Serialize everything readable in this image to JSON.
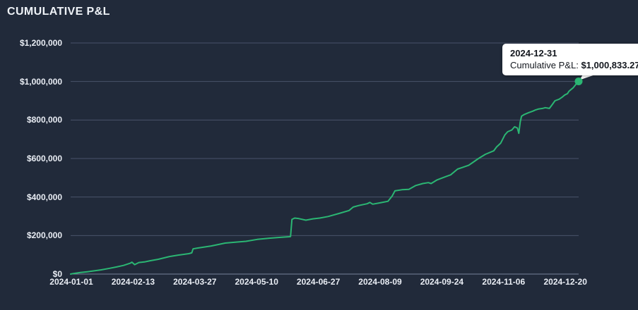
{
  "title": "CUMULATIVE P&L",
  "colors": {
    "background": "#212a3a",
    "line": "#2bb673",
    "marker": "#2bb673",
    "grid": "#49536a",
    "axis": "#76819a",
    "tick_text": "#e9edf4",
    "title_text": "#eef2f7",
    "tooltip_bg": "#ffffff",
    "tooltip_text": "#14181f"
  },
  "tooltip": {
    "date": "2024-12-31",
    "metric_label": "Cumulative P&L: ",
    "value": "$1,000,833.27"
  },
  "chart_data": {
    "type": "line",
    "title": "CUMULATIVE P&L",
    "series_name": "Cumulative P&L",
    "legend": "none",
    "grid": "horizontal-only",
    "ylim": [
      0,
      1200000
    ],
    "x_range": [
      "2024-01-01",
      "2024-12-31"
    ],
    "y_tick_values": [
      1200000,
      1000000,
      800000,
      600000,
      400000,
      200000,
      0
    ],
    "y_tick_labels": [
      "$1,200,000",
      "$1,000,000",
      "$800,000",
      "$600,000",
      "$400,000",
      "$200,000",
      "$0"
    ],
    "x_tick_labels": [
      "2024-01-01",
      "2024-02-13",
      "2024-03-27",
      "2024-05-10",
      "2024-06-27",
      "2024-08-09",
      "2024-09-24",
      "2024-11-06",
      "2024-12-20"
    ],
    "last_point": {
      "date": "2024-12-31",
      "value": 1000833.27
    },
    "points": [
      [
        "2024-01-01",
        0
      ],
      [
        "2024-01-03",
        3000
      ],
      [
        "2024-01-08",
        8000
      ],
      [
        "2024-01-13",
        12000
      ],
      [
        "2024-01-18",
        17000
      ],
      [
        "2024-01-23",
        22000
      ],
      [
        "2024-01-29",
        30000
      ],
      [
        "2024-02-03",
        37000
      ],
      [
        "2024-02-08",
        45000
      ],
      [
        "2024-02-13",
        57000
      ],
      [
        "2024-02-14",
        62000
      ],
      [
        "2024-02-16",
        49000
      ],
      [
        "2024-02-19",
        60000
      ],
      [
        "2024-02-23",
        63000
      ],
      [
        "2024-02-27",
        69000
      ],
      [
        "2024-03-04",
        77000
      ],
      [
        "2024-03-12",
        91000
      ],
      [
        "2024-03-19",
        99000
      ],
      [
        "2024-03-26",
        106000
      ],
      [
        "2024-03-28",
        110000
      ],
      [
        "2024-03-29",
        131000
      ],
      [
        "2024-04-01",
        135000
      ],
      [
        "2024-04-11",
        146000
      ],
      [
        "2024-04-21",
        161000
      ],
      [
        "2024-04-29",
        166000
      ],
      [
        "2024-05-06",
        170000
      ],
      [
        "2024-05-14",
        180000
      ],
      [
        "2024-05-22",
        186000
      ],
      [
        "2024-05-29",
        190000
      ],
      [
        "2024-06-06",
        194000
      ],
      [
        "2024-06-07",
        195000
      ],
      [
        "2024-06-08",
        284000
      ],
      [
        "2024-06-10",
        291000
      ],
      [
        "2024-06-13",
        288000
      ],
      [
        "2024-06-18",
        280000
      ],
      [
        "2024-06-23",
        287000
      ],
      [
        "2024-06-28",
        291000
      ],
      [
        "2024-07-04",
        299000
      ],
      [
        "2024-07-12",
        315000
      ],
      [
        "2024-07-19",
        330000
      ],
      [
        "2024-07-22",
        348000
      ],
      [
        "2024-07-26",
        356000
      ],
      [
        "2024-08-01",
        365000
      ],
      [
        "2024-08-03",
        372000
      ],
      [
        "2024-08-05",
        363000
      ],
      [
        "2024-08-11",
        371000
      ],
      [
        "2024-08-16",
        378000
      ],
      [
        "2024-08-19",
        405000
      ],
      [
        "2024-08-21",
        432000
      ],
      [
        "2024-08-26",
        438000
      ],
      [
        "2024-08-31",
        440000
      ],
      [
        "2024-09-05",
        460000
      ],
      [
        "2024-09-10",
        470000
      ],
      [
        "2024-09-14",
        475000
      ],
      [
        "2024-09-16",
        470000
      ],
      [
        "2024-09-20",
        488000
      ],
      [
        "2024-09-25",
        502000
      ],
      [
        "2024-09-30",
        515000
      ],
      [
        "2024-10-05",
        545000
      ],
      [
        "2024-10-09",
        555000
      ],
      [
        "2024-10-13",
        565000
      ],
      [
        "2024-10-16",
        580000
      ],
      [
        "2024-10-20",
        600000
      ],
      [
        "2024-10-25",
        622000
      ],
      [
        "2024-10-31",
        640000
      ],
      [
        "2024-11-02",
        660000
      ],
      [
        "2024-11-05",
        680000
      ],
      [
        "2024-11-08",
        723000
      ],
      [
        "2024-11-10",
        739000
      ],
      [
        "2024-11-13",
        748000
      ],
      [
        "2024-11-15",
        765000
      ],
      [
        "2024-11-17",
        758000
      ],
      [
        "2024-11-18",
        731000
      ],
      [
        "2024-11-19",
        790000
      ],
      [
        "2024-11-20",
        820000
      ],
      [
        "2024-11-22",
        829000
      ],
      [
        "2024-11-25",
        838000
      ],
      [
        "2024-11-28",
        846000
      ],
      [
        "2024-11-30",
        852000
      ],
      [
        "2024-12-02",
        857000
      ],
      [
        "2024-12-05",
        860000
      ],
      [
        "2024-12-07",
        864000
      ],
      [
        "2024-12-10",
        860000
      ],
      [
        "2024-12-12",
        880000
      ],
      [
        "2024-12-14",
        900000
      ],
      [
        "2024-12-17",
        908000
      ],
      [
        "2024-12-19",
        918000
      ],
      [
        "2024-12-21",
        930000
      ],
      [
        "2024-12-23",
        937000
      ],
      [
        "2024-12-24",
        949000
      ],
      [
        "2024-12-27",
        967000
      ],
      [
        "2024-12-29",
        985000
      ],
      [
        "2024-12-31",
        1000833.27
      ]
    ]
  }
}
